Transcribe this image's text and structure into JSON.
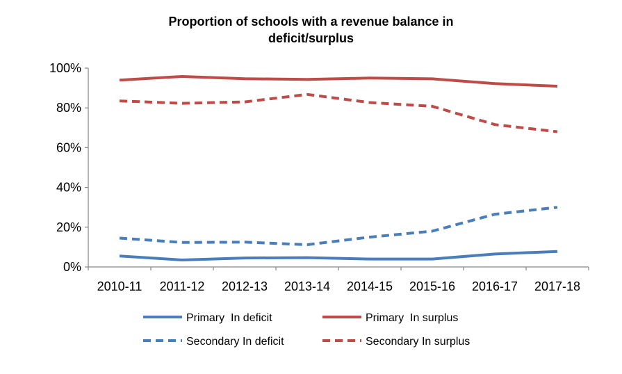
{
  "chart_data": {
    "type": "line",
    "title_line1": "Proportion of schools with  a revenue balance in",
    "title_line2": "deficit/surplus",
    "xlabel": "",
    "ylabel": "",
    "categories": [
      "2010-11",
      "2011-12",
      "2012-13",
      "2013-14",
      "2014-15",
      "2015-16",
      "2016-17",
      "2017-18"
    ],
    "y_ticks": [
      "0%",
      "20%",
      "40%",
      "60%",
      "80%",
      "100%"
    ],
    "ylim": [
      0,
      100
    ],
    "grid": false,
    "legend_position": "bottom",
    "series": [
      {
        "name": "Primary  In deficit",
        "color": "#4a7ebb",
        "style": "solid",
        "values": [
          5.5,
          3.5,
          4.5,
          4.7,
          4.0,
          4.0,
          6.5,
          7.8
        ]
      },
      {
        "name": "Primary  In surplus",
        "color": "#be4b48",
        "style": "solid",
        "values": [
          94.0,
          95.8,
          94.7,
          94.3,
          95.0,
          94.6,
          92.2,
          90.9
        ]
      },
      {
        "name": "Secondary In deficit",
        "color": "#4a7ebb",
        "style": "dashed",
        "values": [
          14.5,
          12.3,
          12.5,
          11.2,
          15.0,
          18.0,
          26.5,
          30.0
        ]
      },
      {
        "name": "Secondary In surplus",
        "color": "#be4b48",
        "style": "dashed",
        "values": [
          83.5,
          82.3,
          83.0,
          86.8,
          82.7,
          80.8,
          71.6,
          68.0
        ]
      }
    ]
  }
}
